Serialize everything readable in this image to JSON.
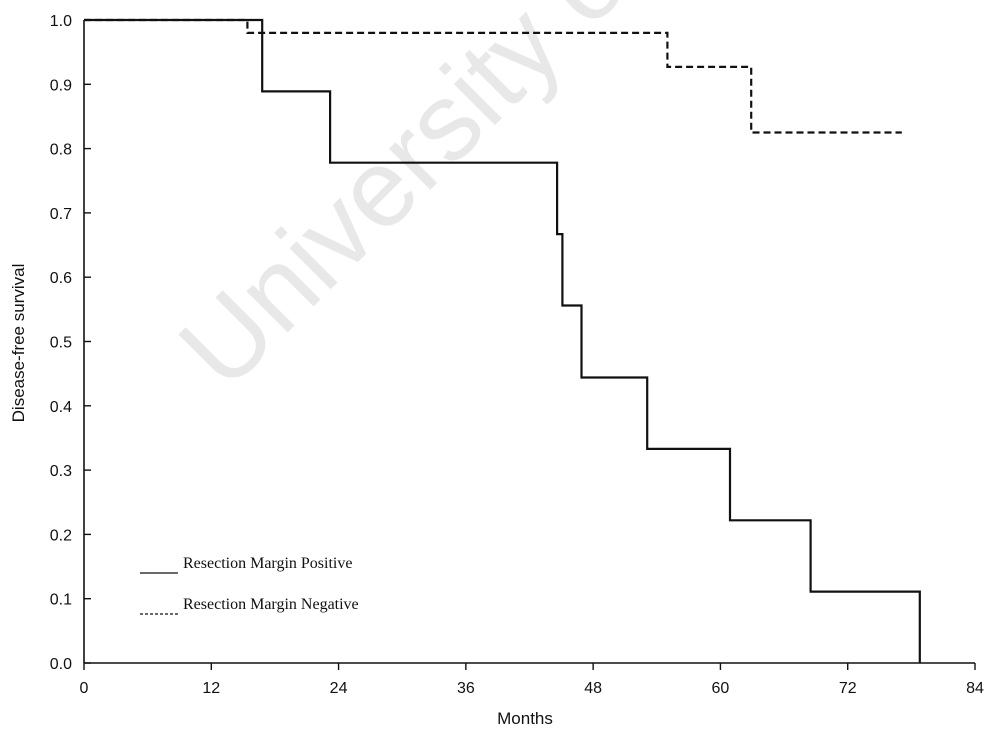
{
  "chart_data": {
    "type": "line",
    "subtype": "step",
    "title": "",
    "xlabel": "Months",
    "ylabel": "Disease-free survival",
    "xlim": [
      0,
      84
    ],
    "ylim": [
      0,
      1.0
    ],
    "x_ticks": [
      0,
      12,
      24,
      36,
      48,
      60,
      72,
      84
    ],
    "x_tick_labels": [
      "0",
      "12",
      "24",
      "36",
      "48",
      "60",
      "72",
      "84"
    ],
    "y_ticks": [
      0,
      0.1,
      0.2,
      0.3,
      0.4,
      0.5,
      0.6,
      0.7,
      0.8,
      0.9,
      1.0
    ],
    "y_tick_labels": [
      "0.0",
      "0.1",
      "0.2",
      "0.3",
      "0.4",
      "0.5",
      "0.6",
      "0.7",
      "0.8",
      "0.9",
      "1.0"
    ],
    "grid": false,
    "legend_position": "bottom-left",
    "series": [
      {
        "name": "Resection Margin Positive",
        "style": "solid",
        "color": "#111111",
        "points": [
          [
            0,
            1.0
          ],
          [
            16.8,
            1.0
          ],
          [
            16.8,
            0.889
          ],
          [
            23.2,
            0.889
          ],
          [
            23.2,
            0.778
          ],
          [
            44.6,
            0.778
          ],
          [
            44.6,
            0.667
          ],
          [
            45.1,
            0.667
          ],
          [
            45.1,
            0.556
          ],
          [
            46.9,
            0.556
          ],
          [
            46.9,
            0.444
          ],
          [
            53.1,
            0.444
          ],
          [
            53.1,
            0.333
          ],
          [
            60.9,
            0.333
          ],
          [
            60.9,
            0.222
          ],
          [
            68.5,
            0.222
          ],
          [
            68.5,
            0.111
          ],
          [
            78.8,
            0.111
          ],
          [
            78.8,
            0.0
          ]
        ]
      },
      {
        "name": "Resection Margin Negative",
        "style": "dashed",
        "color": "#111111",
        "points": [
          [
            0,
            1.0
          ],
          [
            15.4,
            1.0
          ],
          [
            15.4,
            0.98
          ],
          [
            55.0,
            0.98
          ],
          [
            55.0,
            0.927
          ],
          [
            62.9,
            0.927
          ],
          [
            62.9,
            0.825
          ],
          [
            77.1,
            0.825
          ]
        ]
      }
    ],
    "watermark": "University of"
  }
}
